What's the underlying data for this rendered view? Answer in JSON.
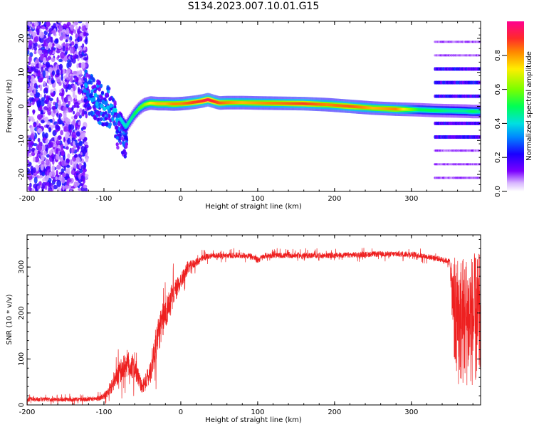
{
  "title": "S134.2023.007.10.01.G15",
  "chart_data": [
    {
      "type": "heatmap",
      "title": "",
      "xlabel": "Height of straight line (km)",
      "ylabel": "Frequency (Hz)",
      "xlim": [
        -200,
        390
      ],
      "ylim": [
        -25,
        25
      ],
      "xticks": [
        -200,
        -100,
        0,
        100,
        200,
        300
      ],
      "yticks": [
        -20,
        -10,
        0,
        10,
        20
      ],
      "colorbar": {
        "label": "Normalized spectral amplitude",
        "range": [
          0,
          1
        ],
        "ticks": [
          "0.0",
          "0.2",
          "0.4",
          "0.6",
          "0.8"
        ],
        "colormap": [
          "#ffffff",
          "#7b00ff",
          "#1a00ff",
          "#00aaff",
          "#00e0e0",
          "#00ff55",
          "#7aff00",
          "#ffee00",
          "#ff8800",
          "#ff2a2a",
          "#ff0090"
        ]
      },
      "ridge": {
        "x": [
          -125,
          -115,
          -105,
          -95,
          -85,
          -78,
          -72,
          -66,
          -60,
          -54,
          -48,
          -40,
          -30,
          -20,
          -10,
          0,
          10,
          20,
          28,
          35,
          42,
          50,
          60,
          80,
          100,
          130,
          160,
          190,
          220,
          250,
          280,
          310,
          330,
          350,
          370,
          380,
          390
        ],
        "frequency": [
          5,
          3,
          1,
          0,
          -2,
          -4,
          -6,
          -4,
          -2,
          -0.5,
          0.5,
          1,
          0.8,
          0.8,
          0.7,
          0.8,
          1,
          1.3,
          1.6,
          2,
          1.5,
          1,
          1.1,
          1.1,
          1,
          0.9,
          0.8,
          0.5,
          0,
          -0.5,
          -0.8,
          -1,
          -1.2,
          -1.3,
          -1.4,
          -1.5,
          -1.5
        ],
        "amplitude": [
          0.3,
          0.35,
          0.35,
          0.38,
          0.4,
          0.4,
          0.42,
          0.45,
          0.5,
          0.55,
          0.6,
          0.7,
          0.75,
          0.75,
          0.8,
          0.8,
          0.85,
          0.88,
          0.9,
          0.95,
          0.9,
          0.85,
          0.8,
          0.75,
          0.78,
          0.82,
          0.88,
          0.8,
          0.85,
          0.75,
          0.8,
          0.5,
          0.5,
          0.45,
          0.45,
          0.5,
          0.45
        ]
      },
      "noise_region_x": [
        -200,
        -122
      ],
      "sidebands_region_x": [
        330,
        390
      ],
      "sideband_frequencies": [
        -21,
        -17,
        -13,
        -9,
        -5,
        -1,
        3,
        7,
        11,
        15,
        19
      ]
    },
    {
      "type": "line",
      "title": "",
      "xlabel": "Height of straight line (km)",
      "ylabel": "SNR (10 * v/v)",
      "xlim": [
        -200,
        390
      ],
      "ylim": [
        0,
        370
      ],
      "xticks": [
        -200,
        -100,
        0,
        100,
        200,
        300
      ],
      "yticks": [
        0,
        100,
        200,
        300
      ],
      "series": [
        {
          "color": "#ee2020",
          "x": [
            -200,
            -150,
            -120,
            -105,
            -95,
            -90,
            -80,
            -70,
            -60,
            -50,
            -40,
            -30,
            -20,
            -10,
            0,
            10,
            20,
            30,
            40,
            50,
            70,
            90,
            100,
            110,
            150,
            200,
            250,
            300,
            330,
            350,
            355,
            390
          ],
          "mean": [
            12,
            12,
            12,
            15,
            25,
            40,
            70,
            90,
            80,
            35,
            70,
            150,
            200,
            240,
            270,
            300,
            310,
            320,
            325,
            325,
            325,
            325,
            315,
            325,
            325,
            325,
            328,
            328,
            320,
            312,
            200,
            200
          ],
          "spread": [
            8,
            8,
            8,
            10,
            15,
            25,
            40,
            50,
            45,
            20,
            45,
            70,
            60,
            45,
            30,
            20,
            15,
            12,
            10,
            10,
            10,
            10,
            12,
            10,
            10,
            10,
            10,
            10,
            10,
            10,
            160,
            160
          ]
        }
      ]
    }
  ]
}
